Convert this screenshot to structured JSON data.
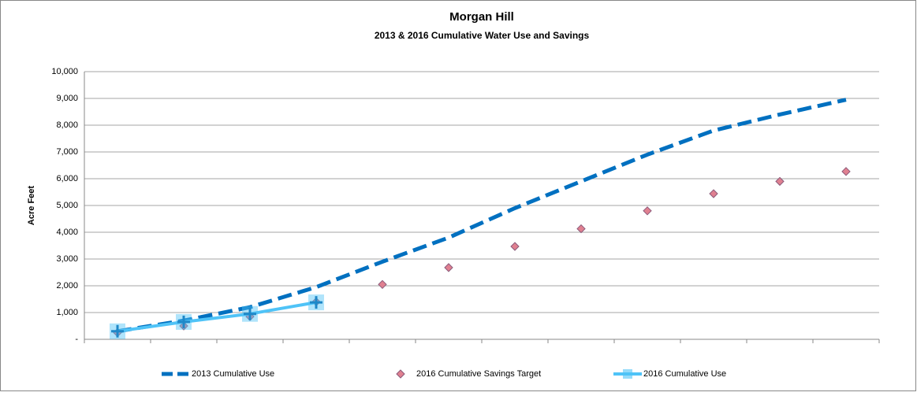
{
  "chart_data": {
    "type": "line",
    "title": "Morgan Hill",
    "subtitle": "2013 & 2016 Cumulative Water Use and Savings",
    "y_label": "Acre Feet",
    "categories": [
      null,
      null,
      null,
      null,
      null,
      null,
      null,
      null,
      null,
      null,
      null,
      null
    ],
    "series": [
      {
        "name": "2013 Cumulative Use",
        "color": "#0070c0",
        "style": "dashed",
        "values": [
          300,
          700,
          1200,
          1950,
          2900,
          3800,
          4900,
          5900,
          6900,
          7800,
          8400,
          8950
        ]
      },
      {
        "name": "2016 Cumulative Savings Target",
        "color": "#e08090",
        "style": "markers",
        "values": [
          250,
          500,
          850,
          1400,
          2050,
          2680,
          3470,
          4130,
          4800,
          5440,
          5900,
          6270
        ]
      },
      {
        "name": "2016 Cumulative Use",
        "color": "#4fc3f7",
        "style": "line-markers",
        "values": [
          300,
          650,
          950,
          1380,
          null,
          null,
          null,
          null,
          null,
          null,
          null,
          null
        ]
      }
    ],
    "ylim": [
      0,
      10000
    ],
    "yticks": [
      {
        "value": 0,
        "label": "-"
      },
      {
        "value": 1000,
        "label": "1,000"
      },
      {
        "value": 2000,
        "label": "2,000"
      },
      {
        "value": 3000,
        "label": "3,000"
      },
      {
        "value": 4000,
        "label": "4,000"
      },
      {
        "value": 5000,
        "label": "5,000"
      },
      {
        "value": 6000,
        "label": "6,000"
      },
      {
        "value": 7000,
        "label": "7,000"
      },
      {
        "value": 8000,
        "label": "8,000"
      },
      {
        "value": 9000,
        "label": "9,000"
      },
      {
        "value": 10000,
        "label": "10,000"
      }
    ],
    "grid": true
  }
}
